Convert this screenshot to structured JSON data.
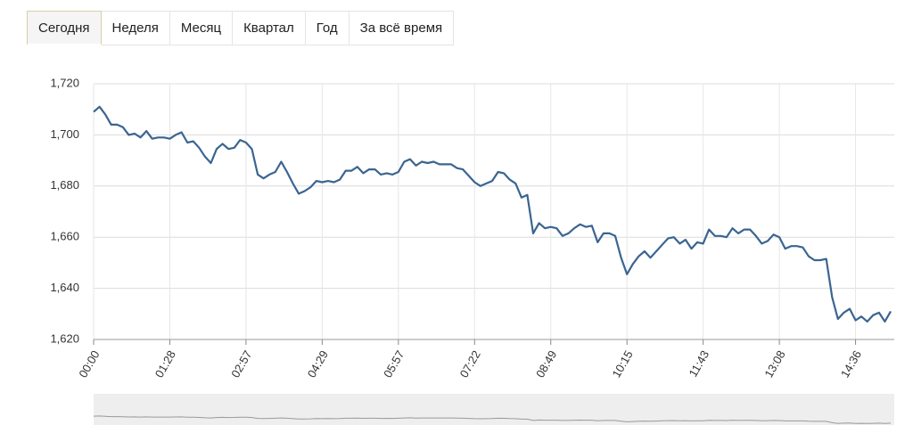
{
  "tabs": [
    "Сегодня",
    "Неделя",
    "Месяц",
    "Квартал",
    "Год",
    "За всё время"
  ],
  "chart_data": {
    "type": "line",
    "categories": [
      "00:00",
      null,
      null,
      null,
      null,
      null,
      null,
      null,
      null,
      null,
      null,
      null,
      null,
      "01:28",
      null,
      null,
      null,
      null,
      null,
      null,
      null,
      null,
      null,
      null,
      null,
      null,
      "02:57",
      null,
      null,
      null,
      null,
      null,
      null,
      null,
      null,
      null,
      null,
      null,
      null,
      "04:29",
      null,
      null,
      null,
      null,
      null,
      null,
      null,
      null,
      null,
      null,
      null,
      null,
      "05:57",
      null,
      null,
      null,
      null,
      null,
      null,
      null,
      null,
      null,
      null,
      null,
      null,
      "07:22",
      null,
      null,
      null,
      null,
      null,
      null,
      null,
      null,
      null,
      null,
      null,
      null,
      "08:49",
      null,
      null,
      null,
      null,
      null,
      null,
      null,
      null,
      null,
      null,
      null,
      null,
      "10:15",
      null,
      null,
      null,
      null,
      null,
      null,
      null,
      null,
      null,
      null,
      null,
      null,
      "11:43",
      null,
      null,
      null,
      null,
      null,
      null,
      null,
      null,
      null,
      null,
      null,
      null,
      "13:08",
      null,
      null,
      null,
      null,
      null,
      null,
      null,
      null,
      null,
      null,
      null,
      null,
      "14:36",
      null,
      null,
      null,
      null,
      null,
      null
    ],
    "values": [
      1709,
      1711,
      1708,
      1704,
      1704,
      1703,
      1700,
      1700.5,
      1699,
      1701.5,
      1698.5,
      1699,
      1699,
      1698.5,
      1700,
      1701,
      1697,
      1697.5,
      1695,
      1691.5,
      1689,
      1694.5,
      1696.5,
      1694.5,
      1695,
      1698,
      1697,
      1694.5,
      1684.5,
      1683,
      1684.5,
      1685.5,
      1689.5,
      1685.5,
      1681,
      1677,
      1678,
      1679.5,
      1682,
      1681.5,
      1682,
      1681.5,
      1682.5,
      1686,
      1686,
      1687.5,
      1685,
      1686.5,
      1686.5,
      1684.5,
      1685,
      1684.5,
      1685.5,
      1689.5,
      1690.5,
      1688,
      1689.5,
      1689,
      1689.5,
      1688.5,
      1688.5,
      1688.5,
      1687,
      1686.5,
      1684,
      1681.5,
      1680,
      1681,
      1682,
      1685.5,
      1685,
      1682.5,
      1681,
      1675.5,
      1676.5,
      1661.5,
      1665.5,
      1663.5,
      1664,
      1663.5,
      1660.5,
      1661.5,
      1663.5,
      1665,
      1664,
      1664.5,
      1658,
      1661.5,
      1661.5,
      1660.5,
      1652,
      1645.5,
      1649.5,
      1652.5,
      1654.5,
      1652,
      1654.5,
      1657,
      1659.5,
      1660,
      1657.5,
      1659,
      1655.5,
      1658,
      1657.5,
      1663,
      1660.5,
      1660.5,
      1660,
      1663.5,
      1661.5,
      1663,
      1663,
      1660.5,
      1657.5,
      1658.5,
      1661,
      1660,
      1655.5,
      1656.5,
      1656.5,
      1656,
      1652.5,
      1651,
      1651,
      1651.5,
      1636.5,
      1628,
      1630.5,
      1632,
      1627.5,
      1629,
      1627,
      1629.5,
      1630.5,
      1627,
      1631
    ],
    "color": "#3a6591",
    "ylim": [
      1620,
      1720
    ],
    "yticks": [
      {
        "value": 1620,
        "label": "1,620"
      },
      {
        "value": 1640,
        "label": "1,640"
      },
      {
        "value": 1660,
        "label": "1,660"
      },
      {
        "value": 1680,
        "label": "1,680"
      },
      {
        "value": 1700,
        "label": "1,700"
      },
      {
        "value": 1720,
        "label": "1,720"
      }
    ],
    "grid": true
  }
}
